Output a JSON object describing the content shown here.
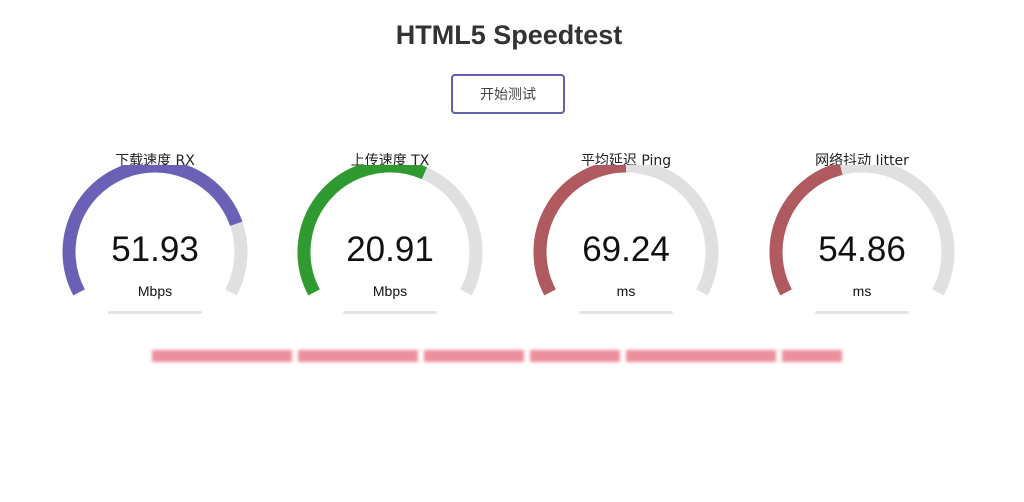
{
  "title": "HTML5 Speedtest",
  "start_button": "开始测试",
  "gauges": [
    {
      "label": "下载速度 RX",
      "value": "51.93",
      "unit": "Mbps",
      "fill": 0.8,
      "color": "#6a60b5"
    },
    {
      "label": "上传速度 TX",
      "value": "20.91",
      "unit": "Mbps",
      "fill": 0.6,
      "color": "#2f9a2f"
    },
    {
      "label": "平均延迟 Ping",
      "value": "69.24",
      "unit": "ms",
      "fill": 0.5,
      "color": "#b0595e"
    },
    {
      "label": "网络抖动 Jitter",
      "value": "54.86",
      "unit": "ms",
      "fill": 0.44,
      "color": "#b0595e"
    }
  ],
  "track_color": "#e0e0e0"
}
